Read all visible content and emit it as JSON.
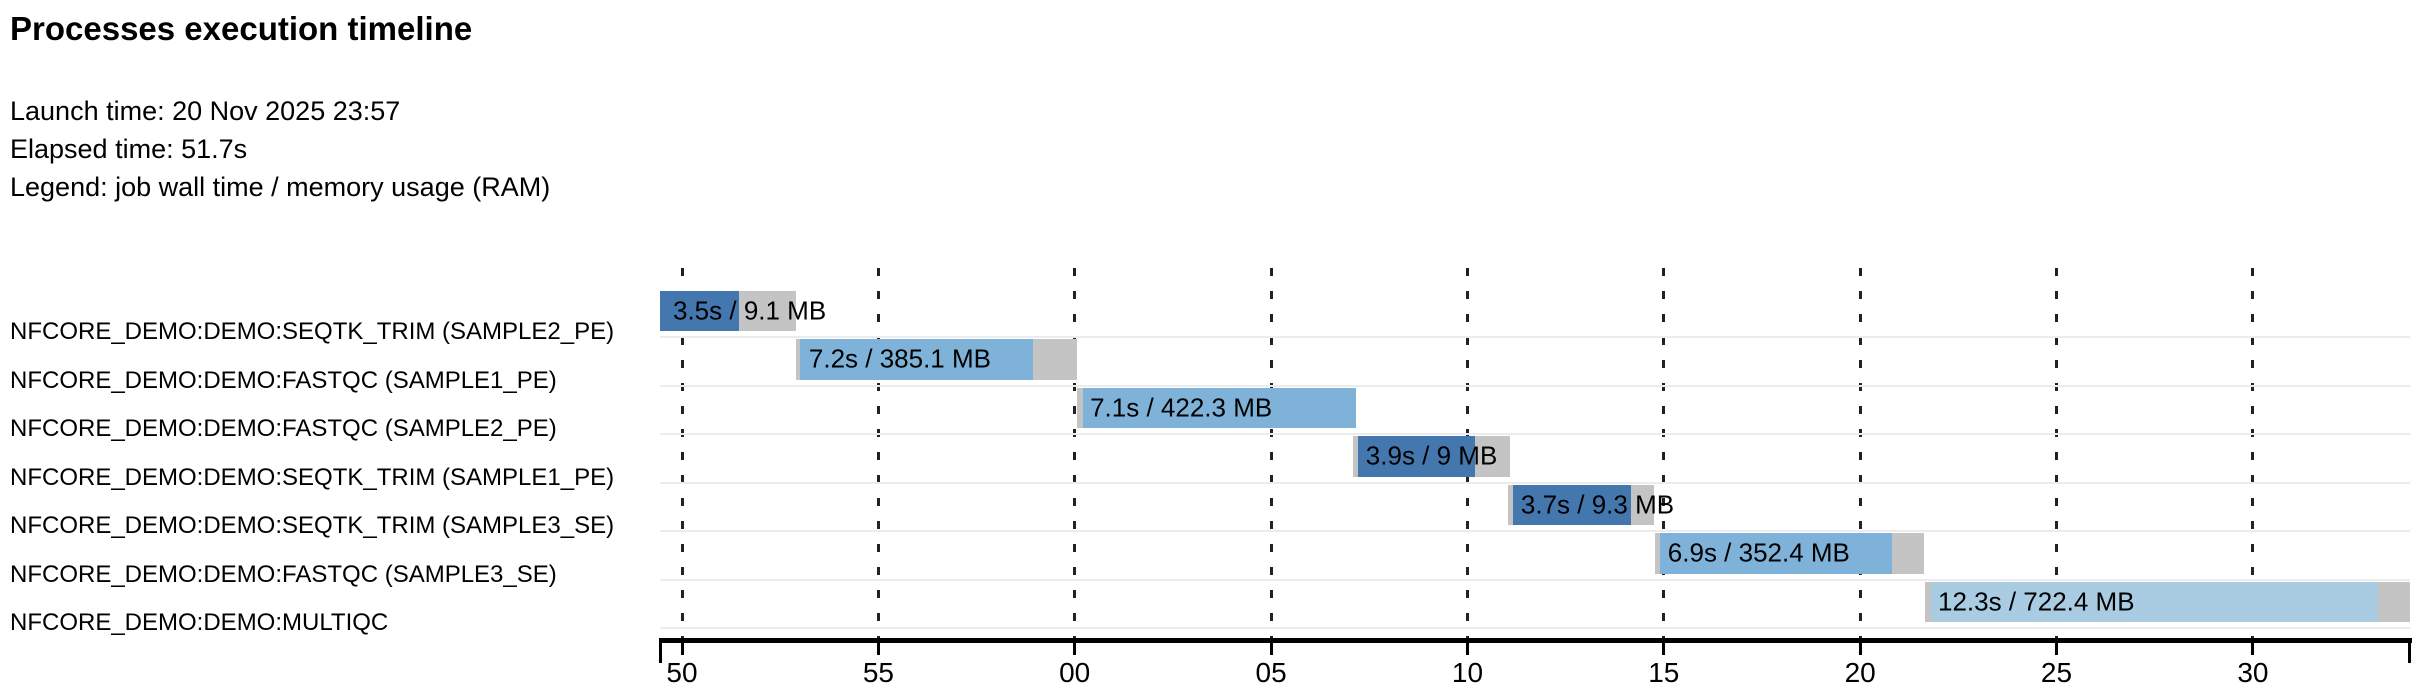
{
  "header": {
    "title": "Processes execution timeline",
    "launch_time": "Launch time: 20 Nov 2025 23:57",
    "elapsed_time": "Elapsed time: 51.7s",
    "legend": "Legend: job wall time / memory usage (RAM)"
  },
  "colors": {
    "seqtk_trim_blue": "#4577af",
    "fastqc_blue": "#7fb2d9",
    "multiqc_blue": "#a9cce3",
    "overhead_gray": "#c4c4c4",
    "gridline": "#222222",
    "row_separator": "#ececec",
    "axis": "#000000"
  },
  "chart_data": {
    "type": "timeline",
    "title": "Processes execution timeline",
    "launch_time": "20 Nov 2025 23:57",
    "elapsed_time_s": 51.7,
    "legend": "job wall time / memory usage (RAM)",
    "time_axis": {
      "unit": "seconds after 23:57:00",
      "min_s": 49.44,
      "max_s": 94.0,
      "tick_interval_s": 5,
      "ticks": [
        {
          "t": 50,
          "label": "50"
        },
        {
          "t": 55,
          "label": "55"
        },
        {
          "t": 60,
          "label": "00"
        },
        {
          "t": 65,
          "label": "05"
        },
        {
          "t": 70,
          "label": "10"
        },
        {
          "t": 75,
          "label": "15"
        },
        {
          "t": 80,
          "label": "20"
        },
        {
          "t": 85,
          "label": "25"
        },
        {
          "t": 90,
          "label": "30"
        }
      ]
    },
    "tasks": [
      {
        "process": "NFCORE_DEMO:DEMO:SEQTK_TRIM (SAMPLE2_PE)",
        "bar_label": "3.5s / 9.1 MB",
        "wall_time": "3.5s",
        "memory": "9.1 MB",
        "start_s": 49.44,
        "run_start_s": 49.44,
        "run_end_s": 51.45,
        "end_s": 52.9,
        "color": "#4577af"
      },
      {
        "process": "NFCORE_DEMO:DEMO:FASTQC (SAMPLE1_PE)",
        "bar_label": "7.2s / 385.1 MB",
        "wall_time": "7.2s",
        "memory": "385.1 MB",
        "start_s": 52.9,
        "run_start_s": 53.0,
        "run_end_s": 58.94,
        "end_s": 60.06,
        "color": "#7fb2d9"
      },
      {
        "process": "NFCORE_DEMO:DEMO:FASTQC (SAMPLE2_PE)",
        "bar_label": "7.1s / 422.3 MB",
        "wall_time": "7.1s",
        "memory": "422.3 MB",
        "start_s": 60.06,
        "run_start_s": 60.21,
        "run_end_s": 67.16,
        "end_s": 67.16,
        "color": "#7fb2d9"
      },
      {
        "process": "NFCORE_DEMO:DEMO:SEQTK_TRIM (SAMPLE1_PE)",
        "bar_label": "3.9s / 9 MB",
        "wall_time": "3.9s",
        "memory": "9 MB",
        "start_s": 67.08,
        "run_start_s": 67.21,
        "run_end_s": 70.19,
        "end_s": 71.08,
        "color": "#4577af"
      },
      {
        "process": "NFCORE_DEMO:DEMO:SEQTK_TRIM (SAMPLE3_SE)",
        "bar_label": "3.7s / 9.3 MB",
        "wall_time": "3.7s",
        "memory": "9.3 MB",
        "start_s": 71.03,
        "run_start_s": 71.16,
        "run_end_s": 74.16,
        "end_s": 74.75,
        "color": "#4577af"
      },
      {
        "process": "NFCORE_DEMO:DEMO:FASTQC (SAMPLE3_SE)",
        "bar_label": "6.9s / 352.4 MB",
        "wall_time": "6.9s",
        "memory": "352.4 MB",
        "start_s": 74.77,
        "run_start_s": 74.9,
        "run_end_s": 80.81,
        "end_s": 81.62,
        "color": "#7fb2d9"
      },
      {
        "process": "NFCORE_DEMO:DEMO:MULTIQC",
        "bar_label": "12.3s / 722.4 MB",
        "wall_time": "12.3s",
        "memory": "722.4 MB",
        "start_s": 81.65,
        "run_start_s": 81.8,
        "run_end_s": 93.18,
        "end_s": 94.0,
        "color": "#a9cce3"
      }
    ]
  }
}
